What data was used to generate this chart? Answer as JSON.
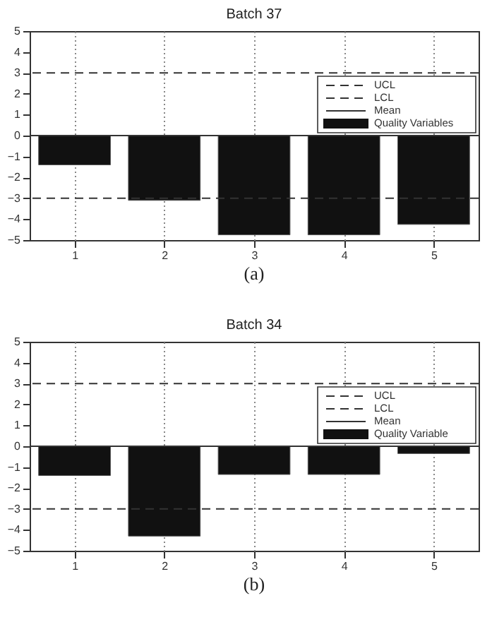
{
  "chart_data": [
    {
      "type": "bar",
      "title": "Batch 37",
      "x": [
        1,
        2,
        3,
        4,
        5
      ],
      "xlim": [
        0.5,
        5.5
      ],
      "xticks": [
        1,
        2,
        3,
        4,
        5
      ],
      "ylim": [
        -5,
        5
      ],
      "yticks": [
        -5,
        -4,
        -3,
        -2,
        -1,
        0,
        1,
        2,
        3,
        4,
        5
      ],
      "grid": "x",
      "legend": "top right",
      "series": [
        {
          "name": "Quality Variables",
          "color": "#111111",
          "values": [
            -1.4,
            -3.1,
            -4.75,
            -4.75,
            -4.25
          ]
        }
      ],
      "ref_lines": [
        {
          "axis": "y",
          "value": 3,
          "label": "UCL",
          "line_style": "dashed",
          "color": "#333333"
        },
        {
          "axis": "y",
          "value": -3,
          "label": "LCL",
          "line_style": "dashed",
          "color": "#333333"
        },
        {
          "axis": "y",
          "value": 0,
          "label": "Mean",
          "line_style": "solid",
          "color": "#333333"
        }
      ],
      "annotations": [
        "(a)"
      ]
    },
    {
      "type": "bar",
      "title": "Batch 34",
      "x": [
        1,
        2,
        3,
        4,
        5
      ],
      "xlim": [
        0.5,
        5.5
      ],
      "xticks": [
        1,
        2,
        3,
        4,
        5
      ],
      "ylim": [
        -5,
        5
      ],
      "yticks": [
        -5,
        -4,
        -3,
        -2,
        -1,
        0,
        1,
        2,
        3,
        4,
        5
      ],
      "grid": "x",
      "legend": "top right",
      "series": [
        {
          "name": "Quality Variable",
          "color": "#111111",
          "values": [
            -1.4,
            -4.3,
            -1.35,
            -1.35,
            -0.35
          ]
        }
      ],
      "ref_lines": [
        {
          "axis": "y",
          "value": 3,
          "label": "UCL",
          "line_style": "dashed",
          "color": "#333333"
        },
        {
          "axis": "y",
          "value": -3,
          "label": "LCL",
          "line_style": "dashed",
          "color": "#333333"
        },
        {
          "axis": "y",
          "value": 0,
          "label": "Mean",
          "line_style": "solid",
          "color": "#333333"
        }
      ],
      "annotations": [
        "(b)"
      ]
    }
  ]
}
